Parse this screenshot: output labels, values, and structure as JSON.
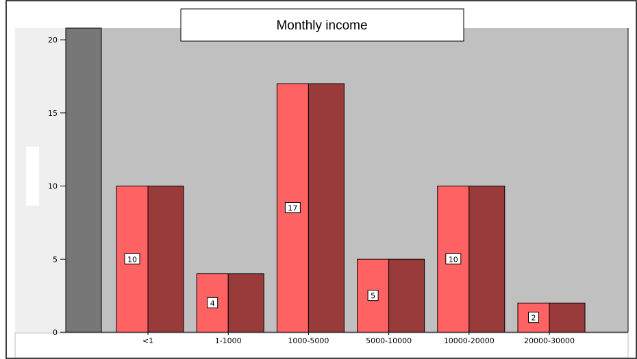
{
  "chart_data": {
    "type": "bar",
    "title": "Monthly income",
    "xlabel": "",
    "ylabel": "",
    "ylim": [
      0,
      20.8
    ],
    "yticks": [
      "0",
      "5",
      "10",
      "15",
      "20"
    ],
    "categories": [
      "<1",
      "1-1000",
      "1000-5000",
      "5000-10000",
      "10000-20000",
      "20000-30000"
    ],
    "values": [
      10,
      4,
      17,
      5,
      10,
      2
    ],
    "data_labels": [
      "10",
      "4",
      "17",
      "5",
      "10",
      "2"
    ],
    "first_column_value": 20.8,
    "grid": false,
    "legend": "none"
  },
  "colors": {
    "plot_background": "#c0c0c0",
    "first_column": "#777777",
    "bar_front": "#ff6262",
    "bar_shadow": "#9a3b3b",
    "outline": "#000000",
    "left_panel": "#efefef",
    "frame": "#000000"
  }
}
